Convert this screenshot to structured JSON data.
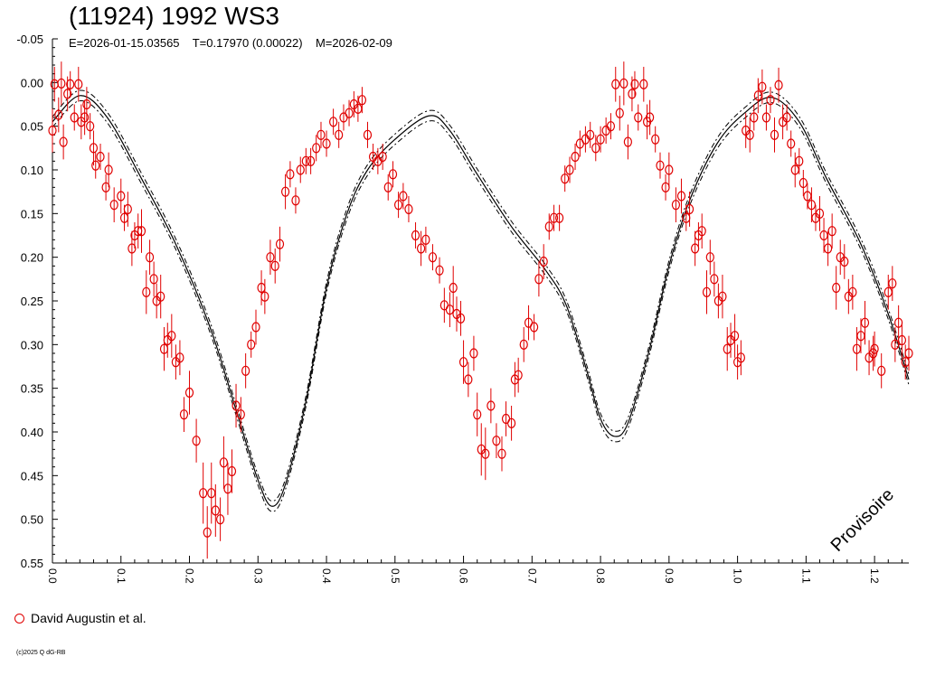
{
  "title": "(11924) 1992 WS3",
  "subtitle": "E=2026-01-15.03565    T=0.17970 (0.00022)    M=2026-02-09",
  "watermark": "Provisoire",
  "legend": {
    "label": "David Augustin et al.",
    "marker_color": "#e00000"
  },
  "copyright": "(c)2025 Q dG-RB",
  "chart_data": {
    "type": "scatter",
    "title": "(11924) 1992 WS3",
    "xlabel": "",
    "ylabel": "",
    "xlim": [
      0,
      1.25
    ],
    "ylim": [
      -0.05,
      0.55
    ],
    "y_inverted": true,
    "grid": false,
    "legend_position": "bottom-left",
    "x_ticks": [
      "0.0",
      "0.1",
      "0.2",
      "0.3",
      "0.4",
      "0.5",
      "0.6",
      "0.7",
      "0.8",
      "0.9",
      "1.0",
      "1.1",
      "1.2"
    ],
    "y_ticks": [
      "-0.05",
      "0.00",
      "0.05",
      "0.10",
      "0.15",
      "0.20",
      "0.25",
      "0.30",
      "0.35",
      "0.40",
      "0.45",
      "0.50",
      "0.55"
    ],
    "colors": {
      "points": "#e00000",
      "fit": "#000000"
    },
    "fit_curve": {
      "points": [
        [
          0.0,
          0.045
        ],
        [
          0.04,
          0.015
        ],
        [
          0.08,
          0.04
        ],
        [
          0.13,
          0.11
        ],
        [
          0.18,
          0.185
        ],
        [
          0.23,
          0.28
        ],
        [
          0.27,
          0.38
        ],
        [
          0.3,
          0.455
        ],
        [
          0.32,
          0.485
        ],
        [
          0.34,
          0.46
        ],
        [
          0.37,
          0.365
        ],
        [
          0.4,
          0.235
        ],
        [
          0.43,
          0.15
        ],
        [
          0.46,
          0.1
        ],
        [
          0.5,
          0.065
        ],
        [
          0.55,
          0.038
        ],
        [
          0.58,
          0.055
        ],
        [
          0.62,
          0.105
        ],
        [
          0.67,
          0.165
        ],
        [
          0.72,
          0.215
        ],
        [
          0.75,
          0.255
        ],
        [
          0.78,
          0.33
        ],
        [
          0.8,
          0.385
        ],
        [
          0.82,
          0.405
        ],
        [
          0.84,
          0.39
        ],
        [
          0.87,
          0.31
        ],
        [
          0.9,
          0.21
        ],
        [
          0.93,
          0.135
        ],
        [
          0.97,
          0.07
        ],
        [
          1.01,
          0.035
        ],
        [
          1.05,
          0.017
        ],
        [
          1.09,
          0.045
        ],
        [
          1.13,
          0.11
        ],
        [
          1.18,
          0.185
        ],
        [
          1.22,
          0.265
        ],
        [
          1.25,
          0.34
        ]
      ],
      "band": 0.006
    },
    "series": [
      {
        "name": "David Augustin et al.",
        "points": [
          [
            0.0,
            0.055,
            0.025
          ],
          [
            0.003,
            0.002,
            0.02
          ],
          [
            0.009,
            0.037,
            0.02
          ],
          [
            0.013,
            0.001,
            0.025
          ],
          [
            0.016,
            0.068,
            0.02
          ],
          [
            0.022,
            0.013,
            0.02
          ],
          [
            0.026,
            0.002,
            0.015
          ],
          [
            0.032,
            0.04,
            0.015
          ],
          [
            0.038,
            0.002,
            0.02
          ],
          [
            0.042,
            0.045,
            0.02
          ],
          [
            0.047,
            0.04,
            0.02
          ],
          [
            0.05,
            0.025,
            0.02
          ],
          [
            0.055,
            0.05,
            0.015
          ],
          [
            0.06,
            0.075,
            0.02
          ],
          [
            0.063,
            0.095,
            0.015
          ],
          [
            0.07,
            0.085,
            0.015
          ],
          [
            0.078,
            0.12,
            0.015
          ],
          [
            0.082,
            0.1,
            0.02
          ],
          [
            0.09,
            0.14,
            0.02
          ],
          [
            0.1,
            0.13,
            0.02
          ],
          [
            0.105,
            0.155,
            0.015
          ],
          [
            0.11,
            0.145,
            0.02
          ],
          [
            0.116,
            0.19,
            0.02
          ],
          [
            0.12,
            0.175,
            0.015
          ],
          [
            0.125,
            0.17,
            0.02
          ],
          [
            0.13,
            0.17,
            0.025
          ],
          [
            0.137,
            0.24,
            0.025
          ],
          [
            0.142,
            0.2,
            0.02
          ],
          [
            0.148,
            0.225,
            0.02
          ],
          [
            0.152,
            0.25,
            0.02
          ],
          [
            0.158,
            0.245,
            0.025
          ],
          [
            0.163,
            0.305,
            0.025
          ],
          [
            0.168,
            0.295,
            0.02
          ],
          [
            0.174,
            0.29,
            0.025
          ],
          [
            0.18,
            0.32,
            0.02
          ],
          [
            0.186,
            0.315,
            0.02
          ],
          [
            0.192,
            0.38,
            0.02
          ],
          [
            0.2,
            0.355,
            0.025
          ],
          [
            0.21,
            0.41,
            0.025
          ],
          [
            0.22,
            0.47,
            0.035
          ],
          [
            0.226,
            0.515,
            0.03
          ],
          [
            0.232,
            0.47,
            0.035
          ],
          [
            0.238,
            0.49,
            0.03
          ],
          [
            0.245,
            0.5,
            0.025
          ],
          [
            0.25,
            0.435,
            0.03
          ],
          [
            0.256,
            0.465,
            0.03
          ],
          [
            0.262,
            0.445,
            0.025
          ],
          [
            0.268,
            0.37,
            0.025
          ],
          [
            0.275,
            0.38,
            0.02
          ],
          [
            0.282,
            0.33,
            0.02
          ],
          [
            0.29,
            0.3,
            0.015
          ],
          [
            0.297,
            0.28,
            0.02
          ],
          [
            0.305,
            0.235,
            0.02
          ],
          [
            0.31,
            0.245,
            0.02
          ],
          [
            0.318,
            0.2,
            0.02
          ],
          [
            0.325,
            0.21,
            0.02
          ],
          [
            0.332,
            0.185,
            0.02
          ],
          [
            0.34,
            0.125,
            0.02
          ],
          [
            0.347,
            0.105,
            0.015
          ],
          [
            0.355,
            0.135,
            0.015
          ],
          [
            0.362,
            0.1,
            0.015
          ],
          [
            0.37,
            0.09,
            0.015
          ],
          [
            0.377,
            0.09,
            0.015
          ],
          [
            0.385,
            0.075,
            0.015
          ],
          [
            0.392,
            0.06,
            0.015
          ],
          [
            0.4,
            0.07,
            0.015
          ],
          [
            0.41,
            0.045,
            0.015
          ],
          [
            0.418,
            0.06,
            0.015
          ],
          [
            0.425,
            0.04,
            0.015
          ],
          [
            0.433,
            0.035,
            0.015
          ],
          [
            0.44,
            0.025,
            0.015
          ],
          [
            0.446,
            0.03,
            0.015
          ],
          [
            0.452,
            0.02,
            0.015
          ],
          [
            0.46,
            0.06,
            0.015
          ],
          [
            0.468,
            0.085,
            0.015
          ],
          [
            0.475,
            0.09,
            0.015
          ],
          [
            0.482,
            0.085,
            0.015
          ],
          [
            0.49,
            0.12,
            0.015
          ],
          [
            0.497,
            0.105,
            0.015
          ],
          [
            0.505,
            0.14,
            0.015
          ],
          [
            0.512,
            0.13,
            0.015
          ],
          [
            0.52,
            0.145,
            0.015
          ],
          [
            0.53,
            0.175,
            0.015
          ],
          [
            0.538,
            0.19,
            0.02
          ],
          [
            0.545,
            0.18,
            0.015
          ],
          [
            0.555,
            0.2,
            0.015
          ],
          [
            0.565,
            0.215,
            0.015
          ],
          [
            0.572,
            0.255,
            0.02
          ],
          [
            0.58,
            0.26,
            0.02
          ],
          [
            0.585,
            0.235,
            0.025
          ],
          [
            0.59,
            0.265,
            0.02
          ],
          [
            0.596,
            0.27,
            0.02
          ],
          [
            0.6,
            0.32,
            0.025
          ],
          [
            0.607,
            0.34,
            0.02
          ],
          [
            0.615,
            0.31,
            0.02
          ],
          [
            0.62,
            0.38,
            0.025
          ],
          [
            0.626,
            0.42,
            0.03
          ],
          [
            0.632,
            0.425,
            0.03
          ],
          [
            0.64,
            0.37,
            0.02
          ],
          [
            0.648,
            0.41,
            0.02
          ],
          [
            0.656,
            0.425,
            0.02
          ],
          [
            0.662,
            0.385,
            0.02
          ],
          [
            0.67,
            0.39,
            0.02
          ],
          [
            0.675,
            0.34,
            0.02
          ],
          [
            0.68,
            0.335,
            0.02
          ],
          [
            0.688,
            0.3,
            0.02
          ],
          [
            0.695,
            0.275,
            0.02
          ],
          [
            0.703,
            0.28,
            0.015
          ],
          [
            0.71,
            0.225,
            0.02
          ],
          [
            0.717,
            0.205,
            0.02
          ],
          [
            0.725,
            0.165,
            0.015
          ],
          [
            0.732,
            0.155,
            0.015
          ],
          [
            0.74,
            0.155,
            0.015
          ],
          [
            0.748,
            0.11,
            0.015
          ],
          [
            0.755,
            0.1,
            0.015
          ],
          [
            0.763,
            0.085,
            0.015
          ],
          [
            0.77,
            0.07,
            0.015
          ],
          [
            0.778,
            0.065,
            0.015
          ],
          [
            0.785,
            0.06,
            0.015
          ],
          [
            0.793,
            0.075,
            0.015
          ],
          [
            0.8,
            0.065,
            0.015
          ],
          [
            0.808,
            0.055,
            0.015
          ],
          [
            0.815,
            0.05,
            0.015
          ],
          [
            0.822,
            0.002,
            0.02
          ],
          [
            0.828,
            0.035,
            0.02
          ],
          [
            0.834,
            0.001,
            0.025
          ],
          [
            0.84,
            0.068,
            0.02
          ],
          [
            0.846,
            0.013,
            0.02
          ],
          [
            0.85,
            0.002,
            0.015
          ],
          [
            0.855,
            0.04,
            0.015
          ],
          [
            0.863,
            0.002,
            0.02
          ],
          [
            0.868,
            0.045,
            0.02
          ],
          [
            0.872,
            0.04,
            0.02
          ],
          [
            0.88,
            0.065,
            0.015
          ],
          [
            0.887,
            0.095,
            0.015
          ],
          [
            0.895,
            0.12,
            0.015
          ],
          [
            0.9,
            0.1,
            0.02
          ],
          [
            0.91,
            0.14,
            0.02
          ],
          [
            0.918,
            0.13,
            0.02
          ],
          [
            0.925,
            0.155,
            0.015
          ],
          [
            0.93,
            0.145,
            0.02
          ],
          [
            0.938,
            0.19,
            0.02
          ],
          [
            0.943,
            0.175,
            0.015
          ],
          [
            0.948,
            0.17,
            0.02
          ],
          [
            0.955,
            0.24,
            0.025
          ],
          [
            0.96,
            0.2,
            0.02
          ],
          [
            0.966,
            0.225,
            0.02
          ],
          [
            0.972,
            0.25,
            0.02
          ],
          [
            0.978,
            0.245,
            0.025
          ],
          [
            0.985,
            0.305,
            0.025
          ],
          [
            0.99,
            0.295,
            0.02
          ],
          [
            0.996,
            0.29,
            0.025
          ],
          [
            1.0,
            0.32,
            0.02
          ],
          [
            1.005,
            0.315,
            0.02
          ],
          [
            1.012,
            0.055,
            0.02
          ],
          [
            1.018,
            0.06,
            0.02
          ],
          [
            1.024,
            0.04,
            0.015
          ],
          [
            1.03,
            0.015,
            0.02
          ],
          [
            1.036,
            0.005,
            0.02
          ],
          [
            1.042,
            0.04,
            0.015
          ],
          [
            1.048,
            0.02,
            0.015
          ],
          [
            1.054,
            0.06,
            0.02
          ],
          [
            1.06,
            0.003,
            0.02
          ],
          [
            1.066,
            0.045,
            0.02
          ],
          [
            1.072,
            0.04,
            0.015
          ],
          [
            1.078,
            0.07,
            0.015
          ],
          [
            1.084,
            0.1,
            0.02
          ],
          [
            1.09,
            0.09,
            0.015
          ],
          [
            1.096,
            0.115,
            0.015
          ],
          [
            1.102,
            0.13,
            0.015
          ],
          [
            1.108,
            0.14,
            0.02
          ],
          [
            1.114,
            0.155,
            0.015
          ],
          [
            1.12,
            0.15,
            0.02
          ],
          [
            1.126,
            0.175,
            0.02
          ],
          [
            1.132,
            0.19,
            0.02
          ],
          [
            1.138,
            0.17,
            0.02
          ],
          [
            1.144,
            0.235,
            0.025
          ],
          [
            1.15,
            0.2,
            0.02
          ],
          [
            1.156,
            0.205,
            0.02
          ],
          [
            1.162,
            0.245,
            0.02
          ],
          [
            1.168,
            0.24,
            0.02
          ],
          [
            1.174,
            0.305,
            0.025
          ],
          [
            1.18,
            0.29,
            0.02
          ],
          [
            1.186,
            0.275,
            0.025
          ],
          [
            1.192,
            0.315,
            0.02
          ],
          [
            1.198,
            0.31,
            0.02
          ],
          [
            1.2,
            0.305,
            0.02
          ],
          [
            1.21,
            0.33,
            0.02
          ],
          [
            1.22,
            0.24,
            0.02
          ],
          [
            1.226,
            0.23,
            0.02
          ],
          [
            1.23,
            0.3,
            0.02
          ],
          [
            1.235,
            0.275,
            0.02
          ],
          [
            1.24,
            0.295,
            0.02
          ],
          [
            1.245,
            0.32,
            0.02
          ],
          [
            1.25,
            0.31,
            0.02
          ]
        ]
      }
    ]
  }
}
